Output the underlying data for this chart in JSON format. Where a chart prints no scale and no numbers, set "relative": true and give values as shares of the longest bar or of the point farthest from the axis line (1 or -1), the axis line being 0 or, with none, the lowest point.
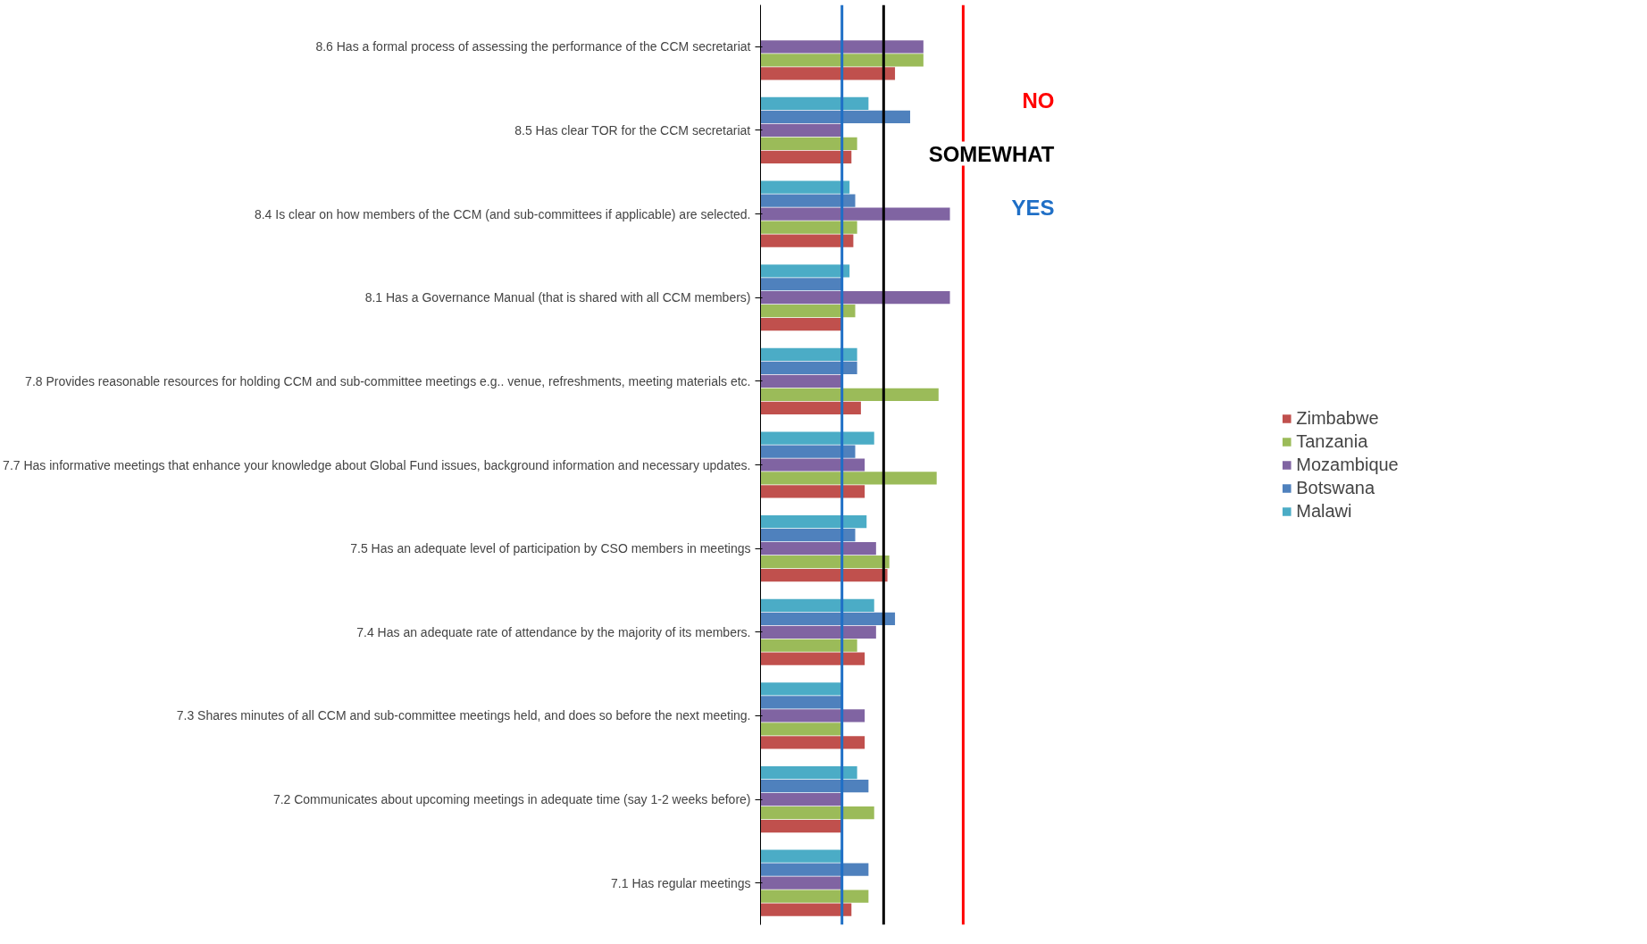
{
  "chart_data": {
    "type": "bar",
    "orientation": "horizontal",
    "relative": true,
    "legend": "right",
    "categories": [
      "8.6 Has a formal process of assessing the performance of the CCM secretariat",
      "8.5 Has clear TOR for the CCM secretariat",
      "8.4 Is clear on how members of the CCM (and sub-committees if applicable) are selected.",
      "8.1 Has a Governance Manual (that is shared with all CCM members)",
      "7.8 Provides reasonable resources for holding CCM and sub-committee meetings e.g.. venue, refreshments, meeting materials etc.",
      "7.7 Has informative meetings that enhance your knowledge about Global Fund issues, background information and necessary updates.",
      "7.5 Has an adequate level of participation by CSO members in meetings",
      "7.4 Has an adequate rate of attendance by the majority of its members.",
      "7.3 Shares minutes of all CCM and sub-committee meetings held, and does so before the next meeting.",
      "7.2 Communicates about upcoming meetings in adequate time (say 1-2 weeks before)",
      "7.1 Has regular meetings"
    ],
    "series": [
      {
        "name": "Zimbabwe",
        "color": "#c0504d",
        "values": [
          0.71,
          0.48,
          0.49,
          0.43,
          0.53,
          0.55,
          0.67,
          0.55,
          0.55,
          0.43,
          0.48
        ]
      },
      {
        "name": "Tanzania",
        "color": "#9bbb59",
        "values": [
          0.86,
          0.51,
          0.51,
          0.5,
          0.94,
          0.93,
          0.68,
          0.51,
          0.43,
          0.6,
          0.57
        ]
      },
      {
        "name": "Mozambique",
        "color": "#8064a2",
        "values": [
          0.86,
          0.43,
          1,
          1,
          0.43,
          0.55,
          0.61,
          0.61,
          0.55,
          0.43,
          0.43
        ]
      },
      {
        "name": "Botswana",
        "color": "#4f81bd",
        "values": [
          null,
          0.79,
          0.5,
          0.43,
          0.51,
          0.5,
          0.5,
          0.71,
          0.43,
          0.57,
          0.57
        ]
      },
      {
        "name": "Malawi",
        "color": "#4bacc6",
        "values": [
          null,
          0.57,
          0.47,
          0.47,
          0.51,
          0.6,
          0.56,
          0.6,
          0.43,
          0.51,
          0.43
        ]
      }
    ],
    "ref_lines": [
      {
        "axis": "x",
        "value": 1.07,
        "label": "NO",
        "color": "#ff0000"
      },
      {
        "axis": "x",
        "value": 0.65,
        "label": "SOMEWHAT",
        "color": "#000000"
      },
      {
        "axis": "x",
        "value": 0.43,
        "label": "YES",
        "color": "#1f6fc6"
      }
    ]
  }
}
